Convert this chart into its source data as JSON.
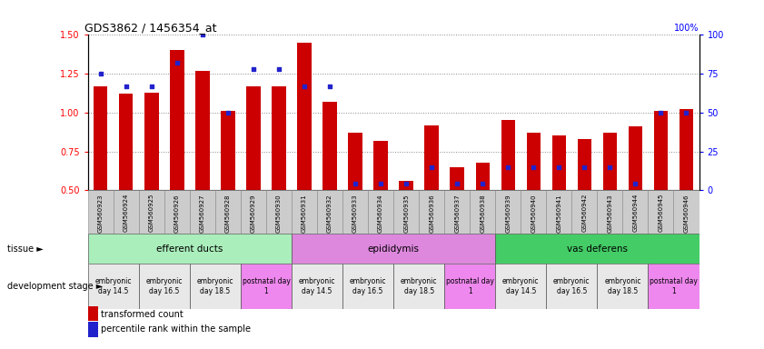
{
  "title": "GDS3862 / 1456354_at",
  "samples": [
    "GSM560923",
    "GSM560924",
    "GSM560925",
    "GSM560926",
    "GSM560927",
    "GSM560928",
    "GSM560929",
    "GSM560930",
    "GSM560931",
    "GSM560932",
    "GSM560933",
    "GSM560934",
    "GSM560935",
    "GSM560936",
    "GSM560937",
    "GSM560938",
    "GSM560939",
    "GSM560940",
    "GSM560941",
    "GSM560942",
    "GSM560943",
    "GSM560944",
    "GSM560945",
    "GSM560946"
  ],
  "transformed_count": [
    1.17,
    1.12,
    1.13,
    1.4,
    1.27,
    1.01,
    1.17,
    1.17,
    1.45,
    1.07,
    0.87,
    0.82,
    0.56,
    0.92,
    0.65,
    0.68,
    0.95,
    0.87,
    0.85,
    0.83,
    0.87,
    0.91,
    1.01,
    1.02
  ],
  "percentile_rank": [
    75,
    67,
    67,
    82,
    100,
    50,
    78,
    78,
    67,
    67,
    4,
    4,
    4,
    15,
    4,
    4,
    15,
    15,
    15,
    15,
    15,
    4,
    50,
    50
  ],
  "ylim_left": [
    0.5,
    1.5
  ],
  "ylim_right": [
    0,
    100
  ],
  "yticks_left": [
    0.5,
    0.75,
    1.0,
    1.25,
    1.5
  ],
  "yticks_right": [
    0,
    25,
    50,
    75,
    100
  ],
  "bar_color": "#cc0000",
  "dot_color": "#2222cc",
  "tissue_groups": [
    {
      "label": "efferent ducts",
      "start": 0,
      "end": 8,
      "color": "#aaeebb"
    },
    {
      "label": "epididymis",
      "start": 8,
      "end": 16,
      "color": "#dd88dd"
    },
    {
      "label": "vas deferens",
      "start": 16,
      "end": 24,
      "color": "#44cc66"
    }
  ],
  "dev_stage_groups": [
    {
      "label": "embryonic\nday 14.5",
      "start": 0,
      "end": 2,
      "color": "#e8e8e8"
    },
    {
      "label": "embryonic\nday 16.5",
      "start": 2,
      "end": 4,
      "color": "#e8e8e8"
    },
    {
      "label": "embryonic\nday 18.5",
      "start": 4,
      "end": 6,
      "color": "#e8e8e8"
    },
    {
      "label": "postnatal day\n1",
      "start": 6,
      "end": 8,
      "color": "#ee88ee"
    },
    {
      "label": "embryonic\nday 14.5",
      "start": 8,
      "end": 10,
      "color": "#e8e8e8"
    },
    {
      "label": "embryonic\nday 16.5",
      "start": 10,
      "end": 12,
      "color": "#e8e8e8"
    },
    {
      "label": "embryonic\nday 18.5",
      "start": 12,
      "end": 14,
      "color": "#e8e8e8"
    },
    {
      "label": "postnatal day\n1",
      "start": 14,
      "end": 16,
      "color": "#ee88ee"
    },
    {
      "label": "embryonic\nday 14.5",
      "start": 16,
      "end": 18,
      "color": "#e8e8e8"
    },
    {
      "label": "embryonic\nday 16.5",
      "start": 18,
      "end": 20,
      "color": "#e8e8e8"
    },
    {
      "label": "embryonic\nday 18.5",
      "start": 20,
      "end": 22,
      "color": "#e8e8e8"
    },
    {
      "label": "postnatal day\n1",
      "start": 22,
      "end": 24,
      "color": "#ee88ee"
    }
  ],
  "legend_transformed": "transformed count",
  "legend_percentile": "percentile rank within the sample",
  "tissue_label": "tissue",
  "dev_stage_label": "development stage",
  "grid_color": "#888888",
  "bg_color": "#ffffff",
  "plot_bg": "#ffffff",
  "xtick_bg": "#cccccc"
}
